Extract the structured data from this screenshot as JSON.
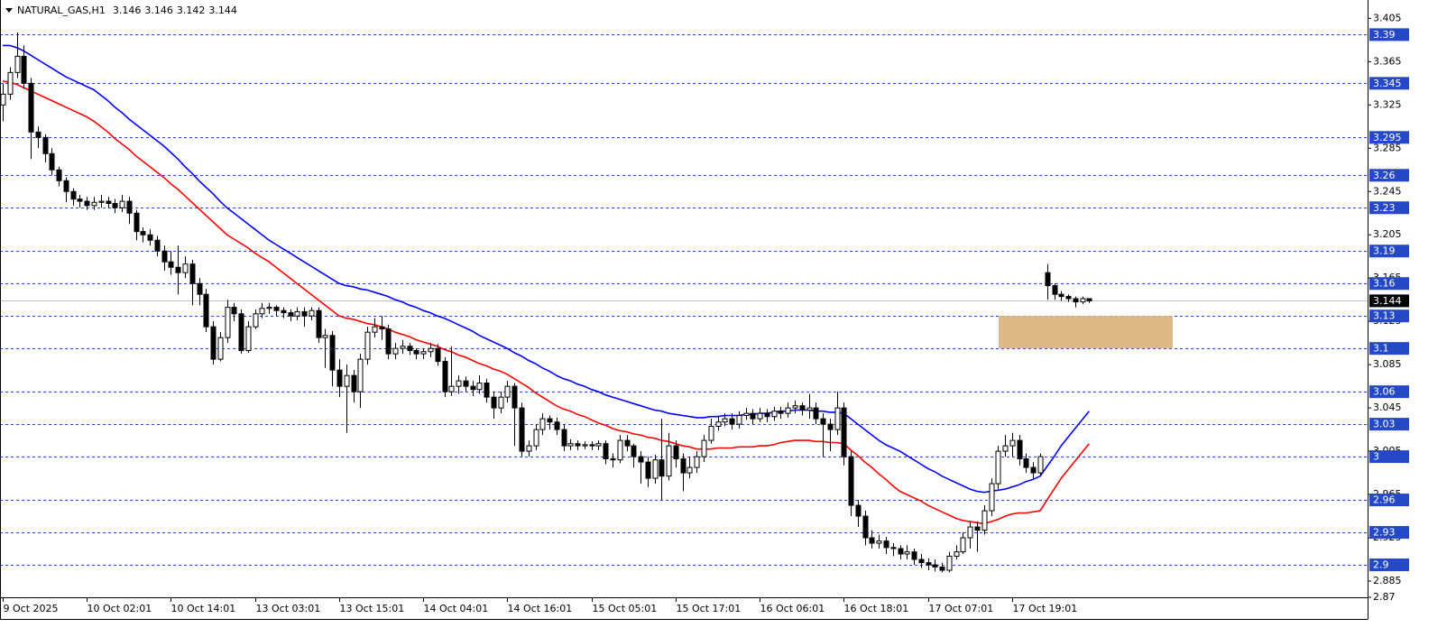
{
  "chart_data": {
    "type": "candlestick",
    "symbol": "NATURAL_GAS,H1",
    "header_ohlc": [
      3.146,
      3.146,
      3.142,
      3.144
    ],
    "categories": [
      "9 Oct 2025",
      null,
      null,
      null,
      null,
      null,
      null,
      null,
      null,
      null,
      null,
      null,
      "10 Oct 02:01",
      null,
      null,
      null,
      null,
      null,
      null,
      null,
      null,
      null,
      null,
      null,
      "10 Oct 14:01",
      null,
      null,
      null,
      null,
      null,
      null,
      null,
      null,
      null,
      null,
      null,
      "13 Oct 03:01",
      null,
      null,
      null,
      null,
      null,
      null,
      null,
      null,
      null,
      null,
      null,
      "13 Oct 15:01",
      null,
      null,
      null,
      null,
      null,
      null,
      null,
      null,
      null,
      null,
      null,
      "14 Oct 04:01",
      null,
      null,
      null,
      null,
      null,
      null,
      null,
      null,
      null,
      null,
      null,
      "14 Oct 16:01",
      null,
      null,
      null,
      null,
      null,
      null,
      null,
      null,
      null,
      null,
      null,
      "15 Oct 05:01",
      null,
      null,
      null,
      null,
      null,
      null,
      null,
      null,
      null,
      null,
      null,
      "15 Oct 17:01",
      null,
      null,
      null,
      null,
      null,
      null,
      null,
      null,
      null,
      null,
      null,
      "16 Oct 06:01",
      null,
      null,
      null,
      null,
      null,
      null,
      null,
      null,
      null,
      null,
      null,
      "16 Oct 18:01",
      null,
      null,
      null,
      null,
      null,
      null,
      null,
      null,
      null,
      null,
      null,
      "17 Oct 07:01",
      null,
      null,
      null,
      null,
      null,
      null,
      null,
      null,
      null,
      null,
      null,
      "17 Oct 19:01",
      null,
      null,
      null,
      null,
      null,
      null,
      null,
      null,
      null,
      null,
      null
    ],
    "open": [
      3.325,
      3.335,
      3.355,
      3.37,
      3.345,
      3.3,
      3.295,
      3.28,
      3.265,
      3.255,
      3.245,
      3.238,
      3.236,
      3.232,
      3.235,
      3.236,
      3.234,
      3.23,
      3.236,
      3.225,
      3.208,
      3.205,
      3.2,
      3.19,
      3.18,
      3.175,
      3.17,
      3.178,
      3.16,
      3.15,
      3.12,
      3.09,
      3.11,
      3.138,
      3.132,
      3.098,
      3.12,
      3.132,
      3.137,
      3.138,
      3.135,
      3.133,
      3.13,
      3.134,
      3.13,
      3.135,
      3.11,
      3.112,
      3.08,
      3.065,
      3.075,
      3.06,
      3.09,
      3.115,
      3.12,
      3.118,
      3.095,
      3.1,
      3.102,
      3.098,
      3.095,
      3.097,
      3.1,
      3.088,
      3.06,
      3.065,
      3.07,
      3.065,
      3.062,
      3.068,
      3.055,
      3.045,
      3.055,
      3.065,
      3.045,
      3.005,
      3.01,
      3.025,
      3.035,
      3.032,
      3.025,
      3.01,
      3.012,
      3.01,
      3.011,
      3.01,
      3.012,
      2.998,
      2.997,
      3.015,
      3.01,
      3.0,
      2.995,
      2.98,
      2.997,
      2.982,
      3.01,
      2.998,
      2.985,
      2.99,
      3.0,
      3.015,
      3.028,
      3.032,
      3.035,
      3.03,
      3.038,
      3.04,
      3.035,
      3.04,
      3.037,
      3.042,
      3.04,
      3.045,
      3.047,
      3.043,
      3.045,
      3.035,
      3.03,
      3.025,
      3.045,
      3.0,
      2.955,
      2.945,
      2.925,
      2.92,
      2.922,
      2.916,
      2.915,
      2.91,
      2.912,
      2.905,
      2.902,
      2.9,
      2.898,
      2.895,
      2.908,
      2.912,
      2.925,
      2.935,
      2.932,
      2.95,
      2.975,
      3.005,
      3.01,
      3.015,
      2.998,
      2.99,
      2.985,
      3.17,
      3.158,
      3.15,
      3.148,
      3.146,
      3.143,
      3.146
    ],
    "high": [
      3.345,
      3.36,
      3.392,
      3.38,
      3.35,
      3.305,
      3.298,
      3.285,
      3.268,
      3.258,
      3.248,
      3.242,
      3.24,
      3.24,
      3.242,
      3.24,
      3.238,
      3.242,
      3.24,
      3.228,
      3.212,
      3.21,
      3.204,
      3.195,
      3.19,
      3.195,
      3.185,
      3.182,
      3.165,
      3.155,
      3.125,
      3.115,
      3.145,
      3.142,
      3.136,
      3.125,
      3.136,
      3.142,
      3.142,
      3.14,
      3.138,
      3.136,
      3.138,
      3.138,
      3.138,
      3.138,
      3.118,
      3.116,
      3.09,
      3.085,
      3.08,
      3.095,
      3.12,
      3.128,
      3.13,
      3.122,
      3.105,
      3.108,
      3.105,
      3.1,
      3.1,
      3.105,
      3.104,
      3.092,
      3.102,
      3.075,
      3.074,
      3.07,
      3.075,
      3.072,
      3.06,
      3.06,
      3.07,
      3.068,
      3.05,
      3.015,
      3.03,
      3.04,
      3.038,
      3.036,
      3.03,
      3.016,
      3.015,
      3.014,
      3.014,
      3.015,
      3.015,
      3.003,
      3.02,
      3.02,
      3.012,
      3.005,
      3.0,
      3.002,
      3.035,
      3.022,
      3.015,
      3.003,
      3.0,
      3.005,
      3.02,
      3.035,
      3.038,
      3.04,
      3.04,
      3.042,
      3.045,
      3.044,
      3.045,
      3.044,
      3.046,
      3.046,
      3.05,
      3.052,
      3.05,
      3.058,
      3.05,
      3.04,
      3.035,
      3.06,
      3.05,
      3.005,
      2.96,
      2.95,
      2.932,
      2.928,
      2.926,
      2.92,
      2.918,
      2.918,
      2.915,
      2.91,
      2.906,
      2.905,
      2.902,
      2.912,
      2.918,
      2.93,
      2.94,
      2.94,
      2.955,
      2.98,
      3.01,
      3.02,
      3.022,
      3.02,
      3.003,
      2.995,
      3.003,
      3.178,
      3.16,
      3.153,
      3.15,
      3.148,
      3.148,
      3.146
    ],
    "low": [
      3.31,
      3.33,
      3.35,
      3.34,
      3.275,
      3.285,
      3.272,
      3.26,
      3.25,
      3.235,
      3.232,
      3.23,
      3.228,
      3.228,
      3.23,
      3.23,
      3.225,
      3.226,
      3.215,
      3.2,
      3.198,
      3.195,
      3.185,
      3.172,
      3.168,
      3.15,
      3.165,
      3.14,
      3.14,
      3.115,
      3.085,
      3.088,
      3.105,
      3.125,
      3.095,
      3.096,
      3.118,
      3.128,
      3.132,
      3.13,
      3.128,
      3.125,
      3.126,
      3.12,
      3.126,
      3.105,
      3.082,
      3.065,
      3.055,
      3.022,
      3.05,
      3.045,
      3.085,
      3.11,
      3.108,
      3.09,
      3.09,
      3.095,
      3.094,
      3.09,
      3.09,
      3.092,
      3.084,
      3.055,
      3.056,
      3.058,
      3.06,
      3.056,
      3.058,
      3.05,
      3.035,
      3.04,
      3.05,
      3.01,
      3.0,
      3.0,
      3.006,
      3.02,
      3.025,
      3.02,
      3.005,
      3.006,
      3.006,
      3.007,
      3.006,
      3.006,
      2.993,
      2.99,
      2.994,
      3.005,
      2.99,
      2.975,
      2.972,
      2.975,
      2.96,
      2.978,
      2.99,
      2.968,
      2.98,
      2.985,
      2.995,
      3.012,
      3.024,
      3.028,
      3.025,
      3.026,
      3.034,
      3.03,
      3.032,
      3.032,
      3.033,
      3.035,
      3.036,
      3.04,
      3.038,
      3.035,
      3.03,
      3.0,
      3.005,
      3.02,
      2.992,
      2.945,
      2.935,
      2.918,
      2.915,
      2.915,
      2.91,
      2.908,
      2.905,
      2.905,
      2.9,
      2.897,
      2.895,
      2.894,
      2.893,
      2.893,
      2.905,
      2.91,
      2.915,
      2.912,
      2.928,
      2.945,
      2.97,
      3.0,
      3.0,
      2.992,
      2.985,
      2.98,
      2.983,
      3.145,
      3.145,
      3.144,
      3.143,
      3.138,
      3.141,
      3.142
    ],
    "close": [
      3.335,
      3.355,
      3.37,
      3.345,
      3.3,
      3.295,
      3.28,
      3.265,
      3.255,
      3.245,
      3.238,
      3.236,
      3.232,
      3.235,
      3.236,
      3.234,
      3.23,
      3.236,
      3.225,
      3.208,
      3.205,
      3.2,
      3.19,
      3.18,
      3.175,
      3.17,
      3.178,
      3.16,
      3.15,
      3.12,
      3.09,
      3.11,
      3.138,
      3.132,
      3.098,
      3.12,
      3.132,
      3.137,
      3.138,
      3.135,
      3.133,
      3.13,
      3.134,
      3.13,
      3.135,
      3.11,
      3.112,
      3.08,
      3.065,
      3.075,
      3.06,
      3.09,
      3.115,
      3.12,
      3.118,
      3.095,
      3.1,
      3.102,
      3.098,
      3.095,
      3.097,
      3.1,
      3.088,
      3.06,
      3.065,
      3.07,
      3.065,
      3.062,
      3.068,
      3.055,
      3.045,
      3.055,
      3.065,
      3.045,
      3.005,
      3.01,
      3.025,
      3.035,
      3.032,
      3.025,
      3.01,
      3.012,
      3.01,
      3.011,
      3.01,
      3.012,
      2.998,
      2.997,
      3.015,
      3.01,
      3.0,
      2.995,
      2.98,
      2.997,
      2.982,
      3.01,
      2.998,
      2.985,
      2.99,
      3.0,
      3.015,
      3.028,
      3.032,
      3.035,
      3.03,
      3.038,
      3.04,
      3.035,
      3.04,
      3.037,
      3.042,
      3.04,
      3.045,
      3.047,
      3.043,
      3.045,
      3.035,
      3.03,
      3.025,
      3.045,
      3.0,
      2.955,
      2.945,
      2.925,
      2.92,
      2.922,
      2.916,
      2.915,
      2.91,
      2.912,
      2.905,
      2.902,
      2.9,
      2.898,
      2.895,
      2.908,
      2.912,
      2.925,
      2.935,
      2.932,
      2.95,
      2.975,
      3.005,
      3.01,
      3.015,
      2.998,
      2.99,
      2.985,
      3.0,
      3.158,
      3.15,
      3.148,
      3.146,
      3.143,
      3.146,
      3.144
    ],
    "up_color": "#ffffff",
    "down_color": "#000000",
    "series": [
      {
        "color": "#0000ff",
        "values": [
          3.38,
          3.38,
          3.378,
          3.375,
          3.371,
          3.367,
          3.363,
          3.359,
          3.355,
          3.351,
          3.348,
          3.345,
          3.342,
          3.339,
          3.334,
          3.329,
          3.323,
          3.318,
          3.312,
          3.307,
          3.302,
          3.297,
          3.292,
          3.287,
          3.281,
          3.275,
          3.268,
          3.262,
          3.255,
          3.249,
          3.243,
          3.236,
          3.23,
          3.225,
          3.22,
          3.215,
          3.21,
          3.205,
          3.2,
          3.196,
          3.192,
          3.188,
          3.184,
          3.18,
          3.176,
          3.172,
          3.168,
          3.164,
          3.16,
          3.158,
          3.157,
          3.155,
          3.154,
          3.152,
          3.15,
          3.148,
          3.145,
          3.143,
          3.14,
          3.138,
          3.135,
          3.133,
          3.13,
          3.128,
          3.125,
          3.122,
          3.119,
          3.116,
          3.112,
          3.109,
          3.106,
          3.103,
          3.1,
          3.096,
          3.093,
          3.089,
          3.086,
          3.082,
          3.079,
          3.075,
          3.072,
          3.07,
          3.067,
          3.065,
          3.062,
          3.06,
          3.057,
          3.055,
          3.053,
          3.051,
          3.049,
          3.047,
          3.045,
          3.043,
          3.042,
          3.04,
          3.039,
          3.038,
          3.037,
          3.036,
          3.036,
          3.037,
          3.037,
          3.038,
          3.038,
          3.038,
          3.039,
          3.039,
          3.04,
          3.04,
          3.041,
          3.042,
          3.042,
          3.043,
          3.043,
          3.043,
          3.042,
          3.042,
          3.041,
          3.041,
          3.04,
          3.035,
          3.03,
          3.025,
          3.02,
          3.015,
          3.011,
          3.008,
          3.005,
          3.001,
          2.997,
          2.993,
          2.989,
          2.986,
          2.982,
          2.979,
          2.976,
          2.973,
          2.97,
          2.968,
          2.967,
          2.968,
          2.969,
          2.97,
          2.972,
          2.974,
          2.977,
          2.979,
          2.982,
          2.991,
          3.0,
          3.01,
          3.018,
          3.026,
          3.034,
          3.042
        ]
      },
      {
        "color": "#ff0000",
        "values": [
          3.347,
          3.346,
          3.344,
          3.341,
          3.338,
          3.335,
          3.332,
          3.329,
          3.326,
          3.323,
          3.32,
          3.317,
          3.314,
          3.31,
          3.305,
          3.3,
          3.294,
          3.289,
          3.284,
          3.278,
          3.273,
          3.268,
          3.263,
          3.258,
          3.252,
          3.247,
          3.241,
          3.235,
          3.229,
          3.223,
          3.217,
          3.211,
          3.205,
          3.201,
          3.197,
          3.193,
          3.188,
          3.184,
          3.18,
          3.175,
          3.17,
          3.165,
          3.16,
          3.155,
          3.15,
          3.145,
          3.14,
          3.135,
          3.13,
          3.128,
          3.127,
          3.125,
          3.123,
          3.122,
          3.12,
          3.118,
          3.115,
          3.113,
          3.111,
          3.108,
          3.106,
          3.104,
          3.102,
          3.099,
          3.097,
          3.094,
          3.092,
          3.089,
          3.086,
          3.084,
          3.081,
          3.079,
          3.076,
          3.072,
          3.068,
          3.064,
          3.059,
          3.055,
          3.051,
          3.047,
          3.044,
          3.042,
          3.039,
          3.037,
          3.034,
          3.031,
          3.029,
          3.026,
          3.024,
          3.023,
          3.021,
          3.02,
          3.018,
          3.017,
          3.015,
          3.014,
          3.012,
          3.01,
          3.009,
          3.007,
          3.007,
          3.007,
          3.008,
          3.008,
          3.008,
          3.009,
          3.009,
          3.009,
          3.01,
          3.01,
          3.011,
          3.013,
          3.014,
          3.015,
          3.015,
          3.015,
          3.014,
          3.014,
          3.013,
          3.013,
          3.012,
          3.006,
          3.001,
          2.995,
          2.99,
          2.984,
          2.979,
          2.973,
          2.968,
          2.965,
          2.962,
          2.959,
          2.955,
          2.952,
          2.949,
          2.946,
          2.943,
          2.941,
          2.94,
          2.939,
          2.938,
          2.94,
          2.942,
          2.945,
          2.947,
          2.948,
          2.948,
          2.949,
          2.95,
          2.96,
          2.97,
          2.98,
          2.988,
          2.996,
          3.004,
          3.012
        ]
      }
    ],
    "ylim": [
      2.87,
      3.422
    ],
    "yticks": [
      3.405,
      3.365,
      3.325,
      3.285,
      3.245,
      3.205,
      3.165,
      3.125,
      3.085,
      3.045,
      3.005,
      2.965,
      2.925,
      2.885,
      2.87
    ],
    "levels": [
      3.39,
      3.345,
      3.295,
      3.26,
      3.23,
      3.19,
      3.16,
      3.13,
      3.1,
      3.06,
      3.03,
      3.0,
      2.96,
      2.93,
      2.9
    ],
    "level_color": "#2448c8",
    "zone_color": "#deb887",
    "current_price": 3.144
  }
}
